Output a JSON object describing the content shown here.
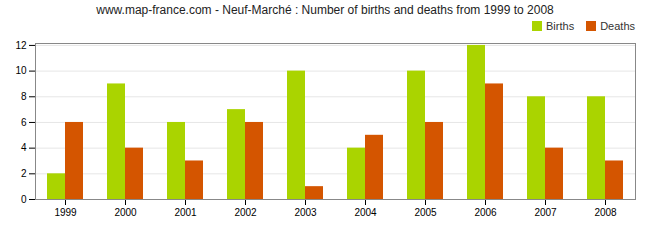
{
  "chart_data": {
    "type": "bar",
    "title": "www.map-france.com - Neuf-Marché : Number of births and deaths from 1999 to 2008",
    "categories": [
      "1999",
      "2000",
      "2001",
      "2002",
      "2003",
      "2004",
      "2005",
      "2006",
      "2007",
      "2008"
    ],
    "series": [
      {
        "name": "Births",
        "color": "#aad400",
        "values": [
          2,
          9,
          6,
          7,
          10,
          4,
          10,
          12,
          8,
          8
        ]
      },
      {
        "name": "Deaths",
        "color": "#d45500",
        "values": [
          6,
          4,
          3,
          6,
          1,
          5,
          6,
          9,
          4,
          3
        ]
      }
    ],
    "ylim": [
      0,
      12.15
    ],
    "yticks": [
      0,
      2,
      4,
      6,
      8,
      10,
      12
    ],
    "grid": true,
    "legend": "upper right"
  }
}
